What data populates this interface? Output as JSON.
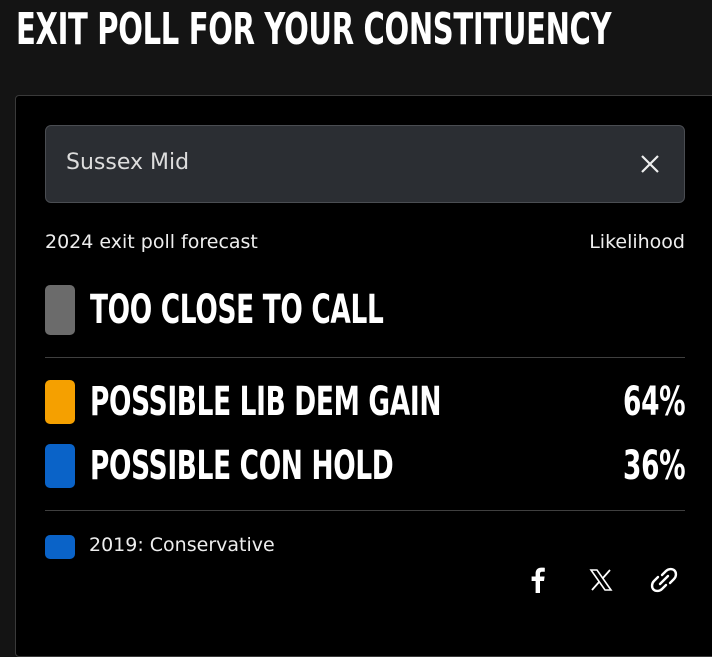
{
  "header": {
    "title": "EXIT POLL FOR YOUR CONSTITUENCY"
  },
  "search": {
    "value": "Sussex Mid"
  },
  "forecast": {
    "label": "2024 exit poll forecast",
    "likelihood_label": "Likelihood",
    "status": {
      "text": "TOO CLOSE TO CALL",
      "color": "#6b6b6b"
    },
    "outcomes": [
      {
        "text": "POSSIBLE LIB DEM GAIN",
        "likelihood": "64%",
        "color": "#f5a000"
      },
      {
        "text": "POSSIBLE CON HOLD",
        "likelihood": "36%",
        "color": "#0a63c8"
      }
    ]
  },
  "previous": {
    "text": "2019: Conservative",
    "color": "#0a63c8"
  }
}
